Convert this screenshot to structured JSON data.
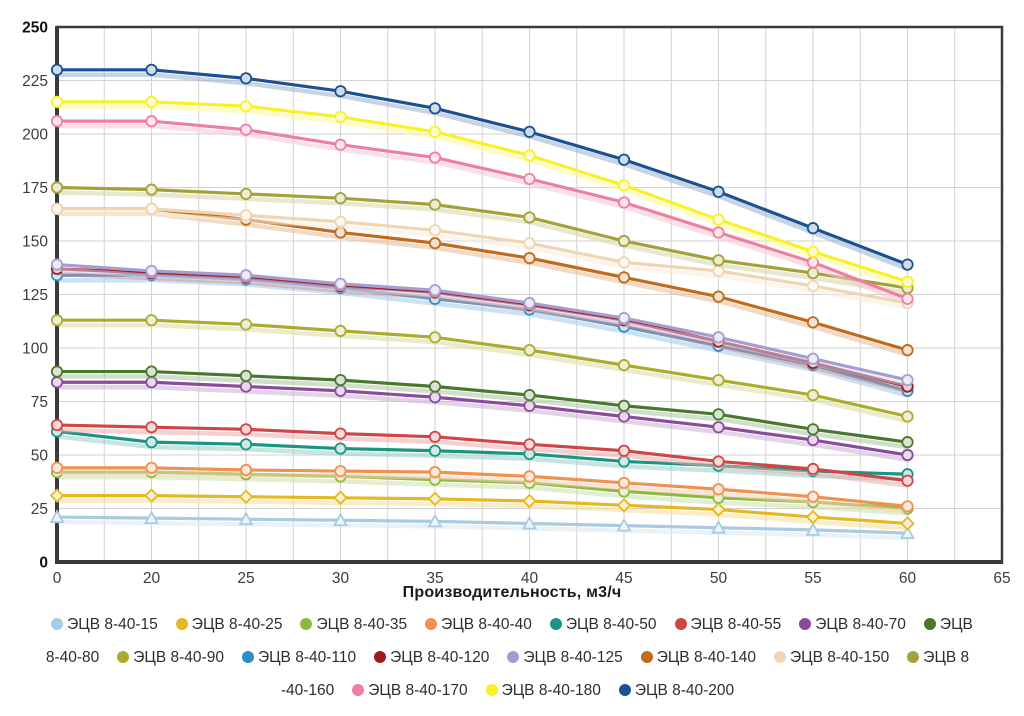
{
  "chart_data": {
    "type": "line",
    "x_axis_type": "categorical-equal-spacing",
    "xlabel": "Производительность, м3/ч",
    "x_tick_labels": [
      "0",
      "20",
      "25",
      "30",
      "35",
      "40",
      "45",
      "50",
      "55",
      "60",
      "65"
    ],
    "x": [
      0,
      20,
      25,
      30,
      35,
      40,
      45,
      50,
      55,
      60
    ],
    "ylim": [
      0,
      250
    ],
    "y_ticks": [
      0,
      25,
      50,
      75,
      100,
      125,
      150,
      175,
      200,
      225,
      250
    ],
    "grid": "major-y, half-step-x",
    "legend_position": "bottom",
    "series": [
      {
        "name": "ЭЦВ 8-40-15",
        "color": "#a9cbe2",
        "marker": "triangle",
        "values": [
          21,
          20.5,
          20,
          19.5,
          19,
          18,
          17,
          16,
          15,
          13.5
        ]
      },
      {
        "name": "ЭЦВ 8-40-25",
        "color": "#e7b71f",
        "marker": "diamond",
        "values": [
          31,
          31,
          30.5,
          30,
          29.5,
          28.5,
          26.5,
          24.5,
          21,
          18
        ]
      },
      {
        "name": "ЭЦВ 8-40-35",
        "color": "#8cba3f",
        "marker": "circle",
        "values": [
          42,
          42,
          41,
          40,
          38.5,
          37,
          33,
          30,
          28,
          25
        ]
      },
      {
        "name": "ЭЦВ 8-40-40",
        "color": "#f0914f",
        "marker": "circle",
        "values": [
          44,
          44,
          43,
          42.5,
          42,
          40,
          37,
          34,
          30.5,
          26
        ]
      },
      {
        "name": "ЭЦВ 8-40-50",
        "color": "#1a9583",
        "marker": "circle",
        "values": [
          61,
          56,
          55,
          53,
          52,
          50.5,
          47,
          45,
          42.5,
          41
        ]
      },
      {
        "name": "ЭЦВ 8-40-55",
        "color": "#d04545",
        "marker": "circle",
        "values": [
          64,
          63,
          62,
          60,
          58.5,
          55,
          52,
          47,
          43.5,
          38
        ]
      },
      {
        "name": "ЭЦВ 8-40-70",
        "color": "#8a4a9e",
        "marker": "circle",
        "values": [
          84,
          84,
          82,
          80,
          77,
          73,
          68,
          63,
          57,
          50
        ]
      },
      {
        "name": "ЭЦВ 8-40-80",
        "color": "#47782c",
        "marker": "circle",
        "values": [
          89,
          89,
          87,
          85,
          82,
          78,
          73,
          69,
          62,
          56
        ]
      },
      {
        "name": "ЭЦВ 8-40-90",
        "color": "#a9ad2b",
        "marker": "circle",
        "values": [
          113,
          113,
          111,
          108,
          105,
          99,
          92,
          85,
          78,
          68
        ]
      },
      {
        "name": "ЭЦВ 8-40-110",
        "color": "#2e8bc9",
        "marker": "circle",
        "values": [
          134,
          134,
          132,
          128,
          123,
          118,
          110,
          101,
          92,
          80
        ]
      },
      {
        "name": "ЭЦВ 8-40-120",
        "color": "#9e1a1c",
        "marker": "circle",
        "values": [
          137,
          135,
          133,
          129,
          126,
          120,
          113,
          103,
          93,
          82
        ]
      },
      {
        "name": "ЭЦВ 8-40-125",
        "color": "#a79bd3",
        "marker": "circle",
        "values": [
          139,
          136,
          134,
          130,
          127,
          121,
          114,
          105,
          95,
          85
        ]
      },
      {
        "name": "ЭЦВ 8-40-140",
        "color": "#c16a1a",
        "marker": "circle",
        "values": [
          165,
          165,
          160,
          154,
          149,
          142,
          133,
          124,
          112,
          99
        ]
      },
      {
        "name": "ЭЦВ 8-40-150",
        "color": "#f0d5b2",
        "marker": "circle",
        "values": [
          165,
          165,
          162,
          159,
          155,
          149,
          140,
          136,
          129,
          121
        ]
      },
      {
        "name": "ЭЦВ 8-40-160",
        "color": "#a3a236",
        "marker": "circle",
        "values": [
          175,
          174,
          172,
          170,
          167,
          161,
          150,
          141,
          135,
          128
        ]
      },
      {
        "name": "ЭЦВ 8-40-170",
        "color": "#ee7f9f",
        "marker": "circle",
        "values": [
          206,
          206,
          202,
          195,
          189,
          179,
          168,
          154,
          140,
          123
        ]
      },
      {
        "name": "ЭЦВ 8-40-180",
        "color": "#f8f224",
        "marker": "circle",
        "values": [
          215,
          215,
          213,
          208,
          201,
          190,
          176,
          160,
          145,
          131
        ]
      },
      {
        "name": "ЭЦВ 8-40-200",
        "color": "#1b5193",
        "marker": "circle",
        "values": [
          230,
          230,
          226,
          220,
          212,
          201,
          188,
          173,
          156,
          139
        ]
      }
    ]
  },
  "legend": {
    "rows": [
      [
        {
          "color": "#a9cbe2",
          "text": "ЭЦВ 8-40-15"
        },
        {
          "color": "#e7b71f",
          "text": "ЭЦВ 8-40-25"
        },
        {
          "color": "#8cba3f",
          "text": "ЭЦВ 8-40-35"
        },
        {
          "color": "#f0914f",
          "text": "ЭЦВ 8-40-40"
        },
        {
          "color": "#1a9583",
          "text": "ЭЦВ 8-40-50"
        },
        {
          "color": "#d04545",
          "text": "ЭЦВ 8-40-55"
        },
        {
          "color": "#8a4a9e",
          "text": "ЭЦВ 8-40-70"
        },
        {
          "color": "#47782c",
          "text": "ЭЦВ"
        }
      ],
      [
        {
          "text": "8-40-80"
        },
        {
          "color": "#a9ad2b",
          "text": "ЭЦВ 8-40-90"
        },
        {
          "color": "#2e8bc9",
          "text": "ЭЦВ 8-40-110"
        },
        {
          "color": "#9e1a1c",
          "text": "ЭЦВ 8-40-120"
        },
        {
          "color": "#a79bd3",
          "text": "ЭЦВ 8-40-125"
        },
        {
          "color": "#c16a1a",
          "text": "ЭЦВ 8-40-140"
        },
        {
          "color": "#f0d5b2",
          "text": "ЭЦВ 8-40-150"
        },
        {
          "color": "#a3a236",
          "text": "ЭЦВ 8"
        }
      ],
      [
        {
          "text": "-40-160"
        },
        {
          "color": "#ee7f9f",
          "text": "ЭЦВ 8-40-170"
        },
        {
          "color": "#f8f224",
          "text": "ЭЦВ 8-40-180"
        },
        {
          "color": "#1b5193",
          "text": "ЭЦВ 8-40-200"
        }
      ]
    ]
  },
  "axis_style": {
    "tick_color": "#3c3c3c",
    "grid_color": "#d2d2d2",
    "border_color": "#3a3a3a",
    "label_bold_values": [
      "0",
      "250"
    ]
  }
}
